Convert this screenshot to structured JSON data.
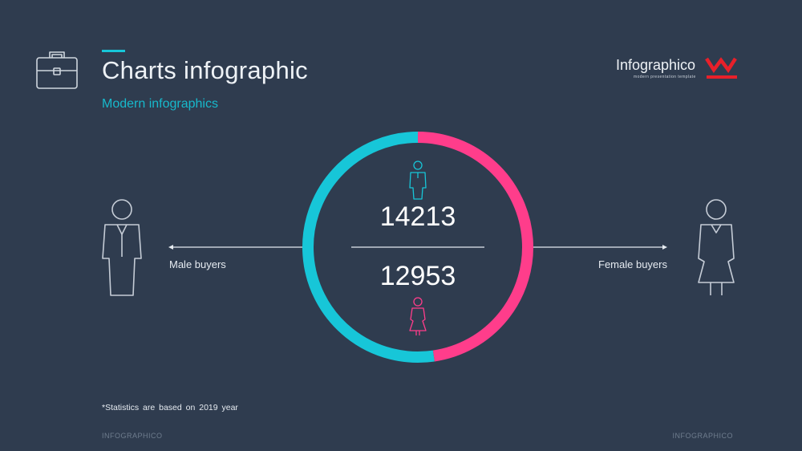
{
  "header": {
    "title": "Charts infographic",
    "subtitle": "Modern infographics"
  },
  "logo": {
    "name": "Infographico",
    "tagline": "modern presentation template",
    "mark_color": "#e8202a"
  },
  "chart_data": {
    "type": "pie",
    "style": "donut",
    "series": [
      {
        "name": "Male buyers",
        "value": 14213,
        "color": "#17c6d8"
      },
      {
        "name": "Female buyers",
        "value": 12953,
        "color": "#ff3d8b"
      }
    ]
  },
  "labels": {
    "male": "Male buyers",
    "female": "Female buyers",
    "male_value": "14213",
    "female_value": "12953"
  },
  "footnote": "*Statistics are based on 2019 year",
  "footer": {
    "left": "INFOGRAPHICO",
    "right": "INFOGRAPHICO"
  },
  "icons": {
    "header": "briefcase-icon",
    "male": "male-person-icon",
    "female": "female-person-icon"
  }
}
